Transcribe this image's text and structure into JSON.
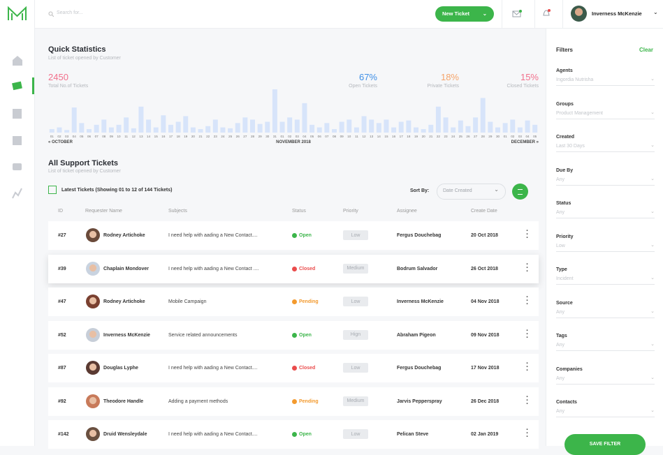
{
  "app": {
    "search_placeholder": "Search for...",
    "new_ticket": "New Ticket",
    "user": "Inverness McKenzie"
  },
  "stats": {
    "title": "Quick Statistics",
    "subtitle": "List of ticket opened by Customer",
    "total": {
      "value": 2450,
      "label": "Total No.of Tickets",
      "color": "#f2708c"
    },
    "kpis": [
      {
        "value": "67%",
        "label": "Open Tickets",
        "color": "#3f8fe6"
      },
      {
        "value": "18%",
        "label": "Private Tickets",
        "color": "#f5a46a"
      },
      {
        "value": "15%",
        "label": "Closed Tickets",
        "color": "#f2708c"
      }
    ]
  },
  "chart": {
    "type": "bar",
    "color": "#d7e4fa",
    "ylim": [
      0,
      100
    ],
    "categories": [
      "01",
      "02",
      "03",
      "04",
      "05",
      "06",
      "07",
      "08",
      "09",
      "10",
      "11",
      "12",
      "13",
      "14",
      "15",
      "16",
      "17",
      "18",
      "19",
      "20",
      "21",
      "22",
      "23",
      "24",
      "25",
      "26",
      "27",
      "28",
      "29",
      "30",
      "31",
      "01",
      "02",
      "03",
      "04",
      "05",
      "06",
      "07",
      "08",
      "09",
      "10",
      "11",
      "12",
      "13",
      "14",
      "15",
      "16",
      "17",
      "18",
      "19",
      "20",
      "21",
      "22",
      "23",
      "24",
      "25",
      "26",
      "27",
      "28",
      "29",
      "30",
      "01",
      "02",
      "03",
      "04",
      "05"
    ],
    "values": [
      8,
      12,
      6,
      58,
      22,
      8,
      18,
      30,
      12,
      18,
      35,
      10,
      60,
      30,
      12,
      40,
      18,
      25,
      38,
      12,
      8,
      15,
      30,
      12,
      10,
      22,
      35,
      30,
      20,
      25,
      100,
      25,
      35,
      30,
      68,
      18,
      12,
      22,
      8,
      25,
      30,
      12,
      38,
      30,
      22,
      30,
      12,
      25,
      28,
      12,
      8,
      18,
      60,
      35,
      12,
      28,
      15,
      35,
      80,
      25,
      12,
      22,
      30,
      12,
      28,
      18
    ],
    "months": [
      "« OCTOBER",
      "NOVEMBER 2018",
      "DECEMBER »"
    ]
  },
  "tickets": {
    "title": "All Support Tickets",
    "subtitle": "List of ticket opened by Customer",
    "showing": "Latest Tickets (Showing 01 to 12 of 144 Tickets)",
    "sort_label": "Sort By:",
    "sort_value": "Date Created",
    "columns": [
      "ID",
      "Requester Name",
      "Subjects",
      "Status",
      "Priority",
      "Assignee",
      "Create Date"
    ],
    "status_colors": {
      "Open": "#3cb54a",
      "Closed": "#ea4c4c",
      "Pending": "#f39a2e"
    },
    "rows": [
      [
        "#27",
        "Rodney Artichoke",
        "I need help with aading a New Contact....",
        "Open",
        "Low",
        "Fergus Douchebag",
        "20 Oct 2018"
      ],
      [
        "#39",
        "Chaplain Mondover",
        "I need help with aading a New Contact ....",
        "Closed",
        "Medium",
        "Bodrum Salvador",
        "26 Oct 2018"
      ],
      [
        "#47",
        "Rodney Artichoke",
        "Mobile Campaign",
        "Pending",
        "Low",
        "Inverness McKenzie",
        "04 Nov 2018"
      ],
      [
        "#52",
        "Inverness McKenzie",
        "Service related announcements",
        "Open",
        "Hign",
        "Abraham Pigeon",
        "09 Nov 2018"
      ],
      [
        "#87",
        "Douglas Lyphe",
        "I need help with aading a New Contact....",
        "Closed",
        "Low",
        "Fergus Douchebag",
        "17 Nov 2018"
      ],
      [
        "#92",
        "Theodore Handle",
        "Adding a payment methods",
        "Pending",
        "Medium",
        "Jarvis Pepperspray",
        "26 Dec 2018"
      ],
      [
        "#142",
        "Druid Wensleydale",
        "I need help with aading a New Contact....",
        "Open",
        "Low",
        "Pelican Steve",
        "02 Jan 2019"
      ]
    ]
  },
  "filters": {
    "title": "Filters",
    "clear": "Clear",
    "fields": [
      {
        "label": "Agents",
        "value": "Ingordia Nutrisha"
      },
      {
        "label": "Groups",
        "value": "Product Management"
      },
      {
        "label": "Created",
        "value": "Last 30 Days"
      },
      {
        "label": "Due By",
        "value": "Any"
      },
      {
        "label": "Status",
        "value": "Any"
      },
      {
        "label": "Priority",
        "value": "Low"
      },
      {
        "label": "Type",
        "value": "Incident"
      },
      {
        "label": "Source",
        "value": "Any"
      },
      {
        "label": "Tags",
        "value": "Any"
      },
      {
        "label": "Companies",
        "value": "Any"
      },
      {
        "label": "Contacts",
        "value": "Any"
      }
    ],
    "save": "SAVE FILTER"
  }
}
